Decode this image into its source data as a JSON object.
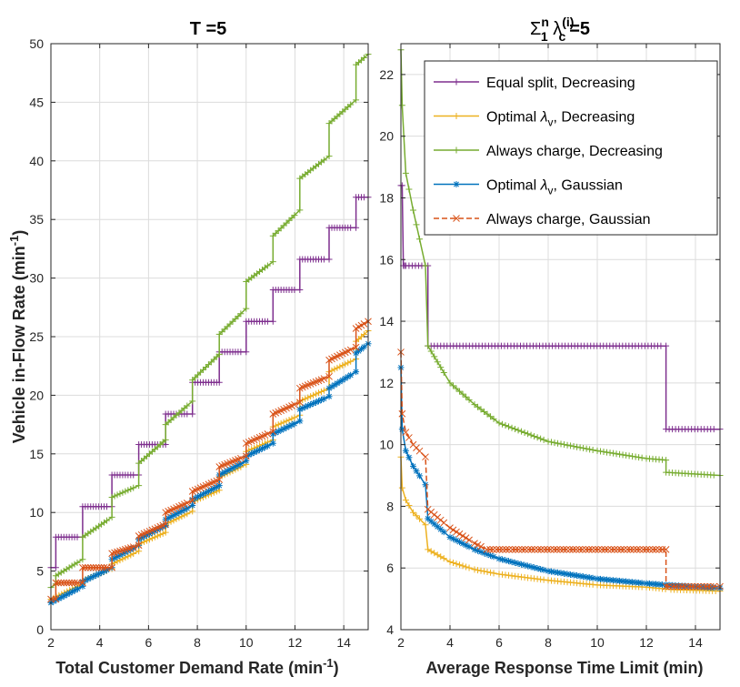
{
  "chart_data": [
    {
      "type": "line",
      "title": "T =5",
      "xlabel": "Total Customer Demand Rate (min",
      "xlabel_sup": "-1",
      "xlabel_end": ")",
      "ylabel": "Vehicle in-Flow Rate  (min",
      "ylabel_sup": "-1",
      "ylabel_end": ")",
      "xlim": [
        2,
        15
      ],
      "ylim": [
        0,
        50
      ],
      "xticks": [
        2,
        4,
        6,
        8,
        10,
        12,
        14
      ],
      "yticks": [
        0,
        5,
        10,
        15,
        20,
        25,
        30,
        35,
        40,
        45,
        50
      ],
      "grid": true,
      "series": [
        {
          "name": "Equal split, Decreasing",
          "color": "#7E2F8E",
          "marker": "+",
          "x": [
            2,
            2.2,
            2.2,
            3.3,
            3.3,
            4.5,
            4.5,
            5.6,
            5.6,
            6.7,
            6.7,
            7.8,
            7.8,
            8.9,
            8.9,
            10.0,
            10.0,
            11.1,
            11.1,
            12.2,
            12.2,
            13.4,
            13.4,
            14.5,
            14.5,
            15
          ],
          "y": [
            5.3,
            5.3,
            7.9,
            7.9,
            10.5,
            10.5,
            13.2,
            13.2,
            15.8,
            15.8,
            18.4,
            18.4,
            21.1,
            21.1,
            23.7,
            23.7,
            26.3,
            26.3,
            29.0,
            29.0,
            31.6,
            31.6,
            34.3,
            34.3,
            36.9,
            36.9
          ]
        },
        {
          "name": "Optimal λv, Decreasing",
          "color": "#EDB120",
          "marker": "+",
          "x": [
            2,
            3.3,
            3.3,
            4.5,
            4.5,
            5.6,
            5.6,
            6.7,
            6.7,
            7.8,
            7.8,
            8.9,
            8.9,
            10.0,
            10.0,
            11.1,
            11.1,
            12.2,
            12.2,
            13.4,
            13.4,
            14.5,
            14.5,
            15
          ],
          "y": [
            2.6,
            3.9,
            4.2,
            5.2,
            5.6,
            6.7,
            7.3,
            8.3,
            9.0,
            10.1,
            10.9,
            11.9,
            13.0,
            14.1,
            15.2,
            16.2,
            17.3,
            18.3,
            19.5,
            20.6,
            22.0,
            23.1,
            24.6,
            25.5
          ]
        },
        {
          "name": "Always charge, Decreasing",
          "color": "#77AC30",
          "marker": "+",
          "x": [
            2,
            2.2,
            2.2,
            3.3,
            3.3,
            4.5,
            4.5,
            5.6,
            5.6,
            6.7,
            6.7,
            7.8,
            7.8,
            8.9,
            8.9,
            10.0,
            10.0,
            11.1,
            11.1,
            12.2,
            12.2,
            13.4,
            13.4,
            14.5,
            14.5,
            15
          ],
          "y": [
            3.6,
            3.9,
            4.6,
            6.0,
            7.9,
            9.6,
            11.3,
            12.3,
            14.2,
            16.2,
            17.5,
            19.5,
            21.3,
            23.5,
            25.2,
            27.4,
            29.7,
            31.4,
            33.6,
            35.8,
            38.5,
            40.4,
            43.2,
            45.2,
            48.2,
            49.1
          ]
        },
        {
          "name": "Optimal λv, Gaussian",
          "color": "#0072BD",
          "marker": "*",
          "x": [
            2,
            3.3,
            3.3,
            4.5,
            4.5,
            5.6,
            5.6,
            6.7,
            6.7,
            7.8,
            7.8,
            8.9,
            8.9,
            10.0,
            10.0,
            11.1,
            11.1,
            12.2,
            12.2,
            13.4,
            13.4,
            14.5,
            14.5,
            15
          ],
          "y": [
            2.3,
            3.7,
            4.1,
            5.3,
            6.0,
            7.2,
            7.7,
            8.9,
            9.4,
            10.6,
            11.1,
            12.3,
            13.2,
            14.4,
            14.8,
            15.9,
            16.7,
            17.8,
            18.8,
            19.9,
            20.6,
            22.0,
            23.6,
            24.4
          ]
        },
        {
          "name": "Always charge, Gaussian",
          "color": "#D95319",
          "marker": "x",
          "x": [
            2,
            2.2,
            2.2,
            3.3,
            3.3,
            4.5,
            4.5,
            5.6,
            5.6,
            6.7,
            6.7,
            7.8,
            7.8,
            8.9,
            8.9,
            10.0,
            10.0,
            11.1,
            11.1,
            12.2,
            12.2,
            13.4,
            13.4,
            14.5,
            14.5,
            15
          ],
          "y": [
            2.6,
            2.6,
            4.0,
            4.0,
            5.3,
            5.3,
            6.5,
            7.2,
            8.0,
            9.0,
            10.0,
            11.0,
            11.8,
            12.8,
            13.9,
            14.8,
            15.9,
            16.9,
            18.4,
            19.4,
            20.6,
            21.6,
            23.0,
            24.1,
            25.7,
            26.3
          ]
        }
      ]
    },
    {
      "type": "line",
      "title_parts": [
        "Σ",
        "n",
        "1",
        " λ",
        "(i)",
        "c",
        "=5"
      ],
      "xlabel": "Average Response Time Limit (min)",
      "xlim": [
        2,
        15
      ],
      "ylim": [
        4,
        23
      ],
      "xticks": [
        2,
        4,
        6,
        8,
        10,
        12,
        14
      ],
      "yticks": [
        4,
        6,
        8,
        10,
        12,
        14,
        16,
        18,
        20,
        22
      ],
      "grid": true,
      "legend": "top-right",
      "legend_entries": [
        {
          "pre": "Equal split, Decreasing",
          "sym": "",
          "sub": "",
          "post": ""
        },
        {
          "pre": "Optimal ",
          "sym": "λ",
          "sub": "v",
          "post": ", Decreasing"
        },
        {
          "pre": "Always charge, Decreasing",
          "sym": "",
          "sub": "",
          "post": ""
        },
        {
          "pre": "Optimal ",
          "sym": "λ",
          "sub": "v",
          "post": ", Gaussian"
        },
        {
          "pre": "Always charge, Gaussian",
          "sym": "",
          "sub": "",
          "post": ""
        }
      ],
      "series": [
        {
          "name": "Equal split, Decreasing",
          "color": "#7E2F8E",
          "marker": "+",
          "x": [
            2,
            2.05,
            2.1,
            2.15,
            2.2,
            3.1,
            3.1,
            12.8,
            12.8,
            15
          ],
          "y": [
            18.4,
            18.4,
            15.8,
            15.8,
            15.8,
            15.8,
            13.2,
            13.2,
            10.5,
            10.5
          ]
        },
        {
          "name": "Optimal λv, Decreasing",
          "color": "#EDB120",
          "marker": "+",
          "x": [
            2,
            2.05,
            2.2,
            2.5,
            3.0,
            3.1,
            4,
            5,
            6,
            8,
            10,
            12,
            13,
            15
          ],
          "y": [
            9.6,
            8.6,
            8.2,
            7.8,
            7.4,
            6.6,
            6.2,
            5.95,
            5.8,
            5.6,
            5.45,
            5.38,
            5.3,
            5.25
          ]
        },
        {
          "name": "Always charge, Decreasing",
          "color": "#77AC30",
          "marker": "+",
          "x": [
            2,
            2.05,
            2.2,
            2.5,
            3.0,
            3.1,
            4,
            5,
            6,
            8,
            10,
            12,
            12.8,
            12.8,
            15
          ],
          "y": [
            22.8,
            21.0,
            18.8,
            17.6,
            15.8,
            13.2,
            12.0,
            11.3,
            10.7,
            10.1,
            9.8,
            9.55,
            9.5,
            9.1,
            9.0
          ]
        },
        {
          "name": "Optimal λv, Gaussian",
          "color": "#0072BD",
          "marker": "*",
          "x": [
            2,
            2.05,
            2.2,
            2.5,
            3.0,
            3.1,
            4,
            5,
            6,
            8,
            10,
            12,
            12.8,
            15
          ],
          "y": [
            12.5,
            10.5,
            9.8,
            9.3,
            8.7,
            7.6,
            7.0,
            6.6,
            6.3,
            5.9,
            5.65,
            5.5,
            5.45,
            5.35
          ]
        },
        {
          "name": "Always charge, Gaussian",
          "color": "#D95319",
          "marker": "x",
          "x": [
            2,
            2.05,
            2.2,
            2.5,
            3.0,
            3.1,
            4,
            5,
            5.5,
            12.8,
            12.8,
            15
          ],
          "y": [
            13.0,
            11.0,
            10.4,
            10.0,
            9.6,
            7.9,
            7.3,
            6.8,
            6.6,
            6.6,
            5.4,
            5.4
          ]
        }
      ]
    }
  ]
}
